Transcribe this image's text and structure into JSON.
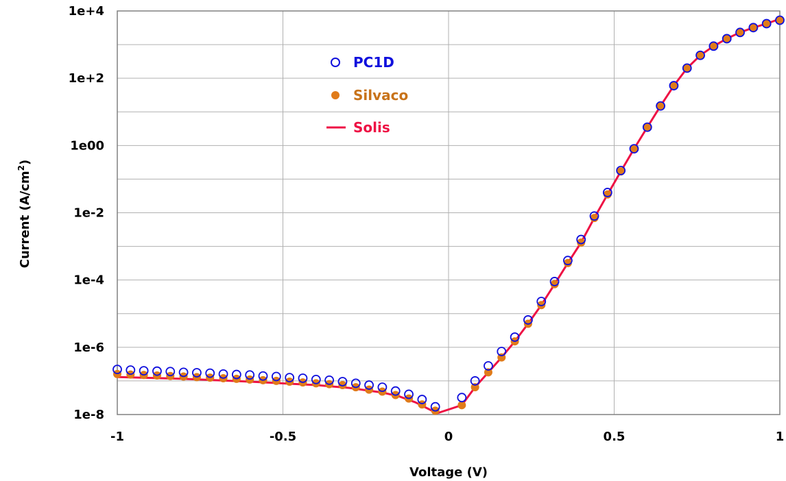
{
  "chart_data": {
    "type": "scatter",
    "title": "",
    "xlabel": "Voltage (V)",
    "ylabel_main": "Current (A/cm",
    "ylabel_sup": "2",
    "ylabel_tail": ")",
    "xlim": [
      -1,
      1
    ],
    "ylim": [
      1e-08,
      10000.0
    ],
    "yscale": "log",
    "grid": true,
    "legend_position": "top-left",
    "x_ticks": [
      {
        "value": -1,
        "label": "-1"
      },
      {
        "value": -0.5,
        "label": "-0.5"
      },
      {
        "value": 0,
        "label": "0"
      },
      {
        "value": 0.5,
        "label": "0.5"
      },
      {
        "value": 1,
        "label": "1"
      }
    ],
    "y_ticks": [
      {
        "value": 1e-08,
        "label": "1e-8"
      },
      {
        "value": 1e-06,
        "label": "1e-6"
      },
      {
        "value": 0.0001,
        "label": "1e-4"
      },
      {
        "value": 0.01,
        "label": "1e-2"
      },
      {
        "value": 1,
        "label": "1e00"
      },
      {
        "value": 100,
        "label": "1e+2"
      },
      {
        "value": 10000,
        "label": "1e+4"
      }
    ],
    "y_minor_grid": [
      1e-07,
      1e-05,
      0.001,
      0.1,
      10,
      1000
    ],
    "series": [
      {
        "name": "PC1D",
        "style": "open-circle",
        "color": "#1010dd",
        "x": [
          -1,
          -0.96,
          -0.92,
          -0.88,
          -0.84,
          -0.8,
          -0.76,
          -0.72,
          -0.68,
          -0.64,
          -0.6,
          -0.56,
          -0.52,
          -0.48,
          -0.44,
          -0.4,
          -0.36,
          -0.32,
          -0.28,
          -0.24,
          -0.2,
          -0.16,
          -0.12,
          -0.08,
          -0.04,
          0.04,
          0.08,
          0.12,
          0.16,
          0.2,
          0.24,
          0.28,
          0.32,
          0.36,
          0.4,
          0.44,
          0.48,
          0.52,
          0.56,
          0.6,
          0.64,
          0.68,
          0.72,
          0.76,
          0.8,
          0.84,
          0.88,
          0.92,
          0.96,
          1
        ],
        "y": [
          2.2e-07,
          2.1e-07,
          2e-07,
          1.95e-07,
          1.9e-07,
          1.8e-07,
          1.75e-07,
          1.7e-07,
          1.6e-07,
          1.55e-07,
          1.5e-07,
          1.4e-07,
          1.35e-07,
          1.25e-07,
          1.2e-07,
          1.1e-07,
          1.05e-07,
          9.5e-08,
          8.5e-08,
          7.5e-08,
          6.5e-08,
          5e-08,
          4e-08,
          2.8e-08,
          1.7e-08,
          3.2e-08,
          1e-07,
          2.8e-07,
          7.5e-07,
          2e-06,
          6.5e-06,
          2.3e-05,
          9e-05,
          0.00038,
          0.0016,
          0.008,
          0.04,
          0.18,
          0.8,
          3.5,
          15,
          60,
          200,
          480,
          900,
          1500,
          2300,
          3200,
          4200,
          5300
        ]
      },
      {
        "name": "Silvaco",
        "style": "filled-circle",
        "color": "#e07b1a",
        "x": [
          -1,
          -0.96,
          -0.92,
          -0.88,
          -0.84,
          -0.8,
          -0.76,
          -0.72,
          -0.68,
          -0.64,
          -0.6,
          -0.56,
          -0.52,
          -0.48,
          -0.44,
          -0.4,
          -0.36,
          -0.32,
          -0.28,
          -0.24,
          -0.2,
          -0.16,
          -0.12,
          -0.08,
          -0.04,
          0.04,
          0.08,
          0.12,
          0.16,
          0.2,
          0.24,
          0.28,
          0.32,
          0.36,
          0.4,
          0.44,
          0.48,
          0.52,
          0.56,
          0.6,
          0.64,
          0.68,
          0.72,
          0.76,
          0.8,
          0.84,
          0.88,
          0.92,
          0.96,
          1
        ],
        "y": [
          1.6e-07,
          1.55e-07,
          1.5e-07,
          1.45e-07,
          1.4e-07,
          1.35e-07,
          1.3e-07,
          1.25e-07,
          1.2e-07,
          1.15e-07,
          1.1e-07,
          1.05e-07,
          1e-07,
          9.5e-08,
          9e-08,
          8.5e-08,
          8e-08,
          7.5e-08,
          6.5e-08,
          5.5e-08,
          4.8e-08,
          3.8e-08,
          3e-08,
          2e-08,
          1.3e-08,
          1.9e-08,
          6.5e-08,
          1.8e-07,
          5e-07,
          1.5e-06,
          5e-06,
          1.8e-05,
          7.5e-05,
          0.00032,
          0.0013,
          0.007,
          0.035,
          0.17,
          0.8,
          3.5,
          15,
          60,
          200,
          480,
          900,
          1500,
          2300,
          3200,
          4200,
          5300
        ]
      },
      {
        "name": "Solis",
        "style": "line",
        "color": "#ee1144",
        "x": [
          -1,
          -0.8,
          -0.6,
          -0.4,
          -0.3,
          -0.2,
          -0.15,
          -0.1,
          -0.05,
          -0.04,
          0.04,
          0.08,
          0.12,
          0.16,
          0.2,
          0.24,
          0.28,
          0.32,
          0.36,
          0.4,
          0.44,
          0.48,
          0.52,
          0.56,
          0.6,
          0.64,
          0.68,
          0.72,
          0.76,
          0.8,
          0.84,
          0.88,
          0.92,
          0.96,
          1
        ],
        "y": [
          1.3e-07,
          1.15e-07,
          9.5e-08,
          7.5e-08,
          6.2e-08,
          4.5e-08,
          3.5e-08,
          2.3e-08,
          1.3e-08,
          1.05e-08,
          1.9e-08,
          6.5e-08,
          1.8e-07,
          5e-07,
          1.5e-06,
          5e-06,
          1.8e-05,
          7.5e-05,
          0.00032,
          0.0013,
          0.007,
          0.035,
          0.17,
          0.8,
          3.5,
          15,
          60,
          200,
          480,
          900,
          1500,
          2300,
          3200,
          4200,
          5800
        ]
      }
    ]
  }
}
